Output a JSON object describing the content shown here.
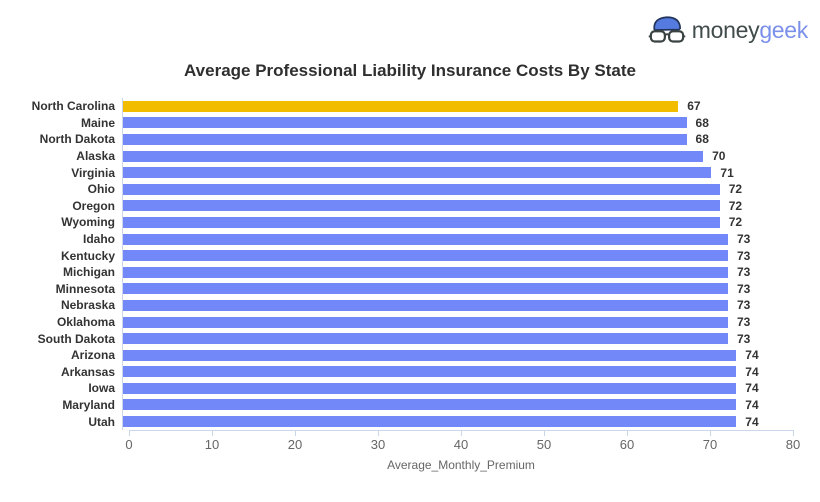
{
  "logo": {
    "icon": "moneygeek-face-icon",
    "text_primary": "money",
    "text_secondary": "geek",
    "text_primary_color": "#414b4b",
    "text_secondary_color": "#7b90ea"
  },
  "chart_data": {
    "type": "bar",
    "orientation": "horizontal",
    "title": "Average Professional Liability Insurance Costs By State",
    "xlabel": "Average_Monthly_Premium",
    "ylabel": "",
    "categories": [
      "North Carolina",
      "Maine",
      "North Dakota",
      "Alaska",
      "Virginia",
      "Ohio",
      "Oregon",
      "Wyoming",
      "Idaho",
      "Kentucky",
      "Michigan",
      "Minnesota",
      "Nebraska",
      "Oklahoma",
      "South Dakota",
      "Arizona",
      "Arkansas",
      "Iowa",
      "Maryland",
      "Utah"
    ],
    "values": [
      67,
      68,
      68,
      70,
      71,
      72,
      72,
      72,
      73,
      73,
      73,
      73,
      73,
      73,
      73,
      74,
      74,
      74,
      74,
      74
    ],
    "data_labels": [
      67,
      68,
      68,
      70,
      71,
      72,
      72,
      72,
      73,
      73,
      73,
      73,
      73,
      73,
      73,
      74,
      74,
      74,
      74,
      74
    ],
    "highlight_index": 0,
    "highlight_color": "#f2bd00",
    "bar_color": "#7388f8",
    "axis_line_color": "#ccd6eb",
    "xlim": [
      0,
      80
    ],
    "x_ticks": [
      0,
      10,
      20,
      30,
      40,
      50,
      60,
      70,
      80
    ],
    "grid": false,
    "legend": "none"
  }
}
